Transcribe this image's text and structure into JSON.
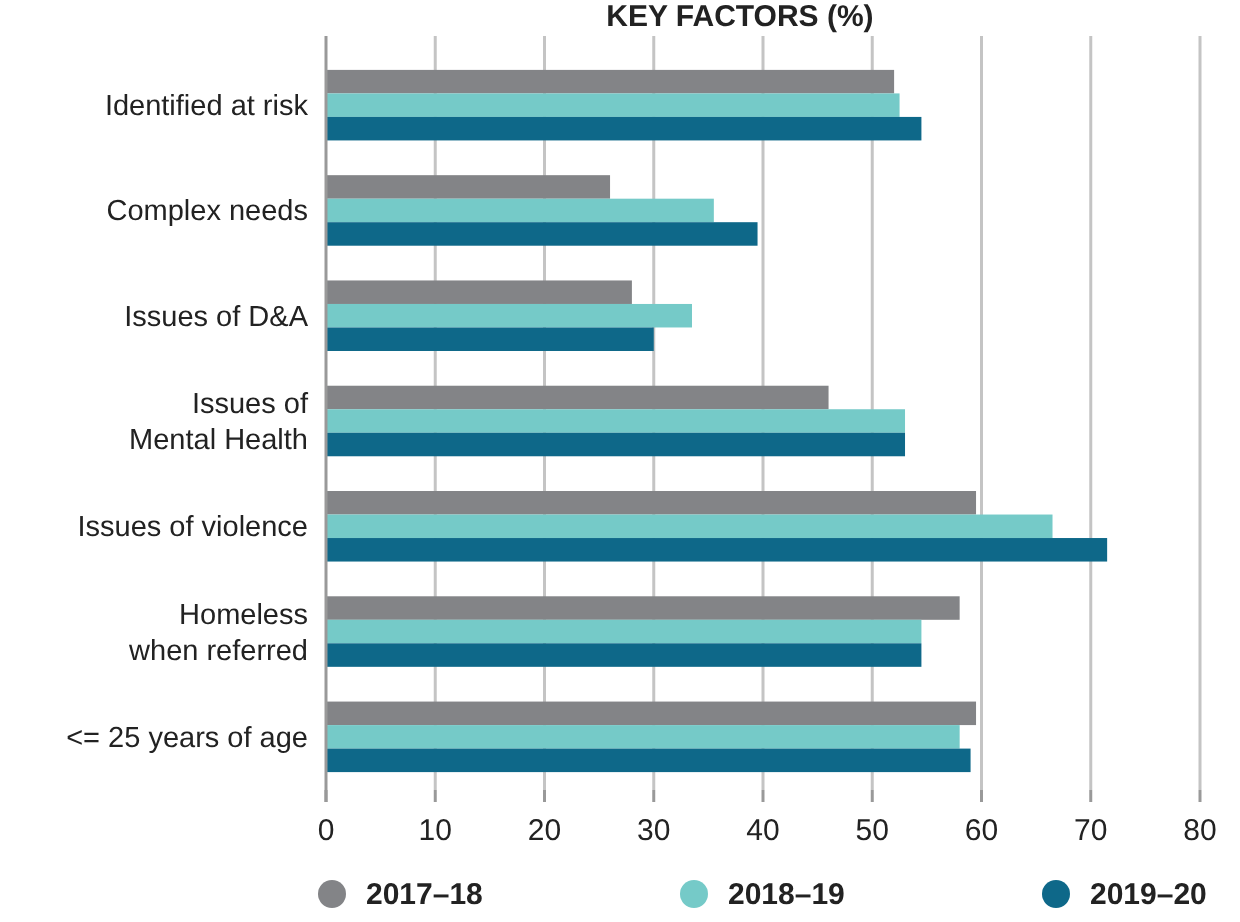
{
  "chart_data": {
    "type": "bar",
    "orientation": "horizontal",
    "title": "KEY FACTORS (%)",
    "categories": [
      "Identified at risk",
      "Complex needs",
      "Issues of D&A",
      "Issues of\nMental Health",
      "Issues of violence",
      "Homeless\nwhen referred",
      "<= 25 years of age"
    ],
    "series": [
      {
        "name": "2017–18",
        "color": "#838487",
        "values": [
          52,
          26,
          28,
          46,
          59.5,
          58,
          59.5
        ]
      },
      {
        "name": "2018–19",
        "color": "#75cac8",
        "values": [
          52.5,
          35.5,
          33.5,
          53,
          66.5,
          54.5,
          58
        ]
      },
      {
        "name": "2019–20",
        "color": "#0e6889",
        "values": [
          54.5,
          39.5,
          30,
          53,
          71.5,
          54.5,
          59
        ]
      }
    ],
    "xlim": [
      0,
      80
    ],
    "xticks": [
      0,
      10,
      20,
      30,
      40,
      50,
      60,
      70,
      80
    ],
    "grid": "x",
    "legend": "bottom"
  }
}
